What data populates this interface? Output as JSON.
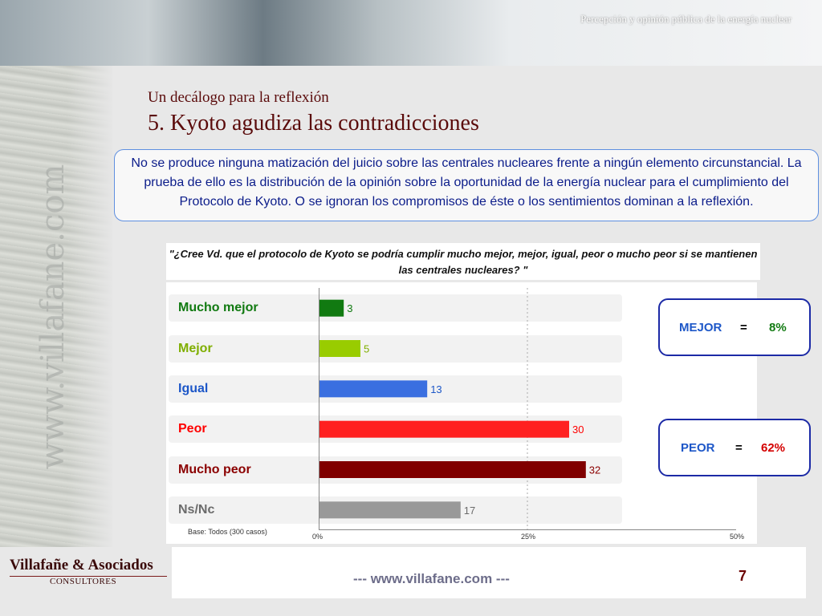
{
  "header": {
    "title": "Percepción y opinión pública de la energía nuclear"
  },
  "watermark": "www.villafane.com",
  "slide": {
    "subtitle": "Un decálogo para la reflexión",
    "title": "5. Kyoto agudiza las contradicciones",
    "callout": "No se produce ninguna matización del juicio sobre las centrales nucleares frente a ningún elemento circunstancial. La prueba de ello es la distribución de la opinión sobre la oportunidad de la energía nuclear para el cumplimiento del Protocolo de Kyoto. O se ignoran los compromisos de éste o los sentimientos dominan a la reflexión."
  },
  "chart_data": {
    "type": "bar",
    "orientation": "horizontal",
    "title": "\"¿Cree Vd. que el protocolo de Kyoto se podría cumplir mucho mejor, mejor, igual, peor o mucho peor si se mantienen las centrales nucleares? \"",
    "categories": [
      "Mucho mejor",
      "Mejor",
      "Igual",
      "Peor",
      "Mucho peor",
      "Ns/Nc"
    ],
    "values": [
      3,
      5,
      13,
      30,
      32,
      17
    ],
    "colors": [
      "#117a11",
      "#99cc00",
      "#3a6fe0",
      "#ff2020",
      "#800000",
      "#999999"
    ],
    "label_colors": [
      "#117a11",
      "#7fae00",
      "#1d57c8",
      "#ff0000",
      "#8b0000",
      "#6b6b6b"
    ],
    "xlim": [
      0,
      50
    ],
    "ticks": [
      "0%",
      "25%",
      "50%"
    ],
    "grid": true,
    "note": "Base: Todos (300 casos)"
  },
  "summary": {
    "mejor": {
      "label": "MEJOR",
      "eq": "=",
      "value": "8%"
    },
    "peor": {
      "label": "PEOR",
      "eq": "=",
      "value": "62%"
    }
  },
  "footer": {
    "brand": "Villafañe & Asociados",
    "brand_sub": "CONSULTORES",
    "url": "--- www.villafane.com ---",
    "page": "7"
  }
}
